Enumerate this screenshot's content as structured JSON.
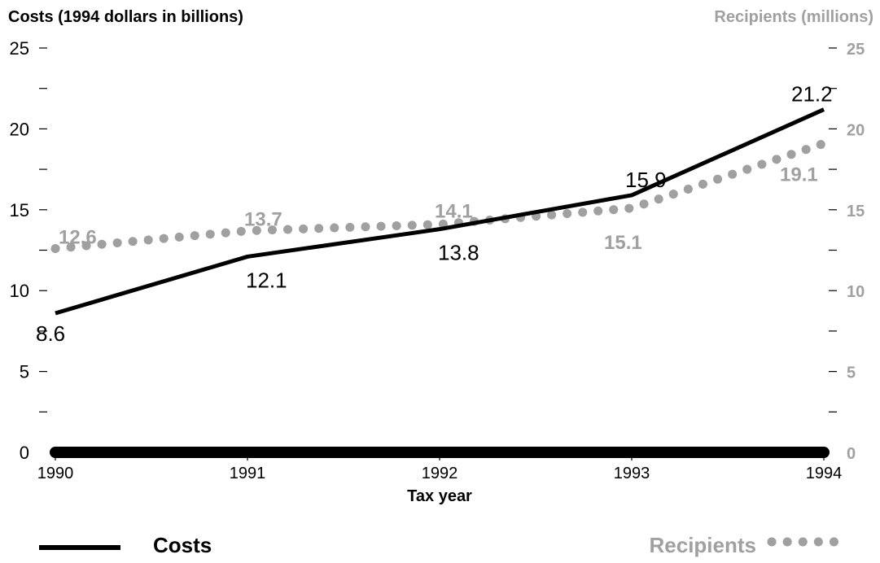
{
  "chart_data": {
    "type": "line",
    "title": "",
    "xlabel": "Tax year",
    "ylabel_left": "Costs (1994 dollars in billions)",
    "ylabel_right": "Recipients (millions)",
    "categories": [
      "1990",
      "1991",
      "1992",
      "1993",
      "1994"
    ],
    "ylim": [
      0,
      25
    ],
    "y_ticks": [
      "0",
      "5",
      "10",
      "15",
      "20",
      "25"
    ],
    "series": [
      {
        "name": "Costs",
        "axis": "left",
        "values": [
          8.6,
          12.1,
          13.8,
          15.9,
          21.2
        ],
        "labels": [
          "8.6",
          "12.1",
          "13.8",
          "15.9",
          "21.2"
        ],
        "color": "#000000",
        "style": "solid"
      },
      {
        "name": "Recipients",
        "axis": "right",
        "values": [
          12.6,
          13.7,
          14.1,
          15.1,
          19.1
        ],
        "labels": [
          "12.6",
          "13.7",
          "14.1",
          "15.1",
          "19.1"
        ],
        "color": "#a0a0a0",
        "style": "dotted"
      }
    ],
    "legend": {
      "position": "bottom",
      "costs_label": "Costs",
      "recipients_label": "Recipients"
    },
    "colors": {
      "costs": "#000000",
      "recipients": "#a0a0a0"
    },
    "grid": false
  }
}
